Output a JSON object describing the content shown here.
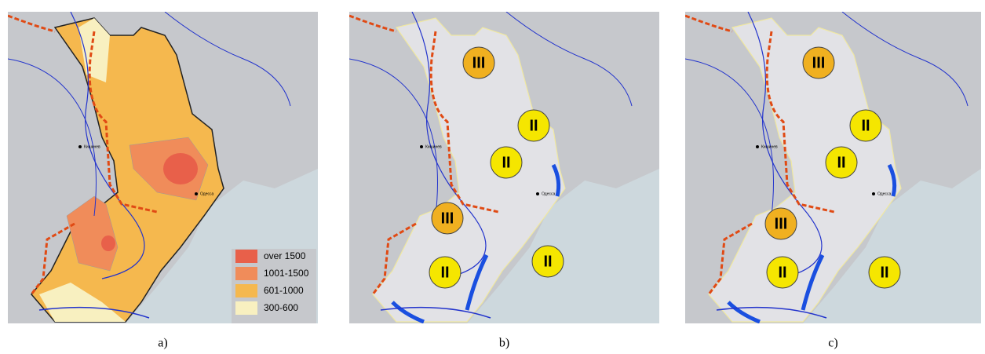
{
  "panels": [
    {
      "caption": "a)",
      "cities": [
        "Кишинев",
        "Одесса"
      ],
      "legend": [
        {
          "label": "over 1500",
          "color": "#e8604a"
        },
        {
          "label": "1001-1500",
          "color": "#f08c5a"
        },
        {
          "label": "601-1000",
          "color": "#f5b84e"
        },
        {
          "label": "300-600",
          "color": "#f8f0c0"
        }
      ]
    },
    {
      "caption": "b)",
      "cities": [
        "Кишинев",
        "Одесса"
      ],
      "zones": [
        {
          "label": "III",
          "color": "#f0b020"
        },
        {
          "label": "II",
          "color": "#f5e600"
        },
        {
          "label": "II",
          "color": "#f5e600"
        },
        {
          "label": "III",
          "color": "#f0b020"
        },
        {
          "label": "II",
          "color": "#f5e600"
        },
        {
          "label": "II",
          "color": "#f5e600"
        }
      ]
    },
    {
      "caption": "c)",
      "cities": [
        "Кишинев",
        "Одесса"
      ],
      "zones": [
        {
          "label": "III",
          "color": "#f0b020"
        },
        {
          "label": "II",
          "color": "#f5e600"
        },
        {
          "label": "II",
          "color": "#f5e600"
        },
        {
          "label": "III",
          "color": "#f0b020"
        },
        {
          "label": "II",
          "color": "#f5e600"
        },
        {
          "label": "II",
          "color": "#f5e600"
        }
      ]
    }
  ]
}
